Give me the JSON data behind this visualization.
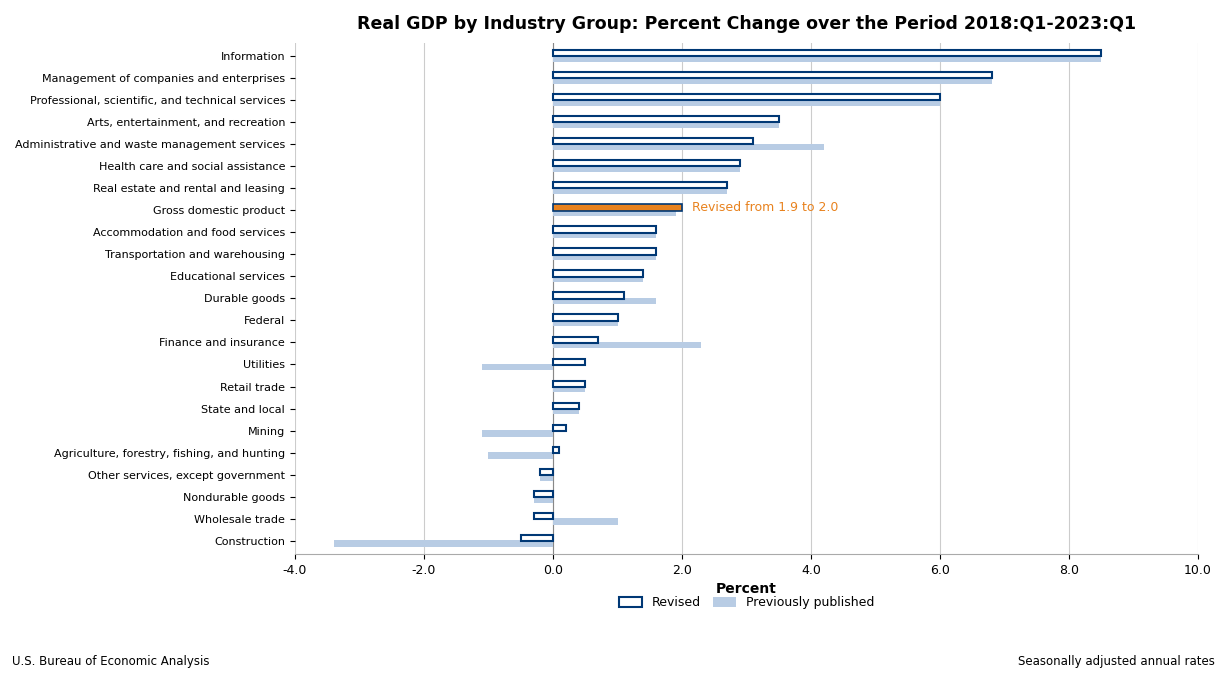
{
  "title": "Real GDP by Industry Group: Percent Change over the Period 2018:Q1-2023:Q1",
  "categories": [
    "Information",
    "Management of companies and enterprises",
    "Professional, scientific, and technical services",
    "Arts, entertainment, and recreation",
    "Administrative and waste management services",
    "Health care and social assistance",
    "Real estate and rental and leasing",
    "Gross domestic product",
    "Accommodation and food services",
    "Transportation and warehousing",
    "Educational services",
    "Durable goods",
    "Federal",
    "Finance and insurance",
    "Utilities",
    "Retail trade",
    "State and local",
    "Mining",
    "Agriculture, forestry, fishing, and hunting",
    "Other services, except government",
    "Nondurable goods",
    "Wholesale trade",
    "Construction"
  ],
  "revised": [
    8.5,
    6.8,
    6.0,
    3.5,
    3.1,
    2.9,
    2.7,
    2.0,
    1.6,
    1.6,
    1.4,
    1.1,
    1.0,
    0.7,
    0.5,
    0.5,
    0.4,
    0.2,
    0.1,
    -0.2,
    -0.3,
    -0.3,
    -0.5
  ],
  "prev_published": [
    8.5,
    6.8,
    6.0,
    3.5,
    4.2,
    2.9,
    2.7,
    1.9,
    1.6,
    1.6,
    1.4,
    1.6,
    1.0,
    2.3,
    -1.1,
    0.5,
    0.4,
    -1.1,
    -1.0,
    -0.2,
    -0.3,
    1.0,
    -3.4
  ],
  "gdp_index": 7,
  "xlim": [
    -4.0,
    10.0
  ],
  "xticks": [
    -4.0,
    -2.0,
    0.0,
    2.0,
    4.0,
    6.0,
    8.0,
    10.0
  ],
  "xlabel": "Percent",
  "annotation": "Revised from 1.9 to 2.0",
  "dark_blue": "#003875",
  "light_blue": "#b8cce4",
  "orange": "#e8821e",
  "annotation_color": "#e8821e",
  "footer_left": "U.S. Bureau of Economic Analysis",
  "footer_right": "Seasonally adjusted annual rates",
  "legend_revised": "Revised",
  "legend_prev": "Previously published"
}
